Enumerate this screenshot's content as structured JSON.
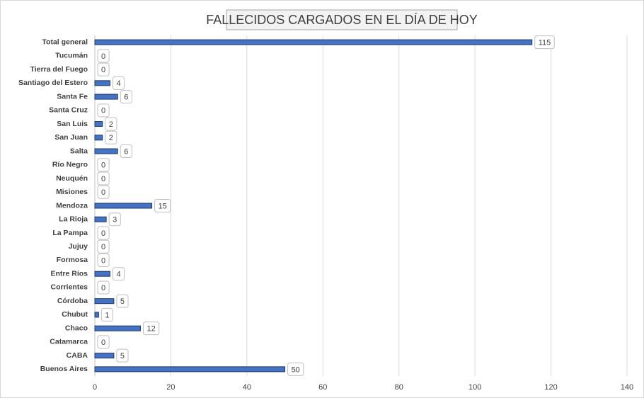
{
  "chart_data": {
    "type": "barh",
    "title": "FALLECIDOS CARGADOS EN EL DÍA DE HOY",
    "categories": [
      "Total general",
      "Tucumán",
      "Tierra del Fuego",
      "Santiago del Estero",
      "Santa Fe",
      "Santa Cruz",
      "San Luis",
      "San Juan",
      "Salta",
      "Río Negro",
      "Neuquén",
      "Misiones",
      "Mendoza",
      "La Rioja",
      "La Pampa",
      "Jujuy",
      "Formosa",
      "Entre Ríos",
      "Corrientes",
      "Córdoba",
      "Chubut",
      "Chaco",
      "Catamarca",
      "CABA",
      "Buenos Aires"
    ],
    "values": [
      115,
      0,
      0,
      4,
      6,
      0,
      2,
      2,
      6,
      0,
      0,
      0,
      15,
      3,
      0,
      0,
      0,
      4,
      0,
      5,
      1,
      12,
      0,
      5,
      50
    ],
    "color": "#4472c4",
    "xlim": [
      0,
      140
    ],
    "xticks": [
      0,
      20,
      40,
      60,
      80,
      100,
      120,
      140
    ],
    "grid": true
  }
}
